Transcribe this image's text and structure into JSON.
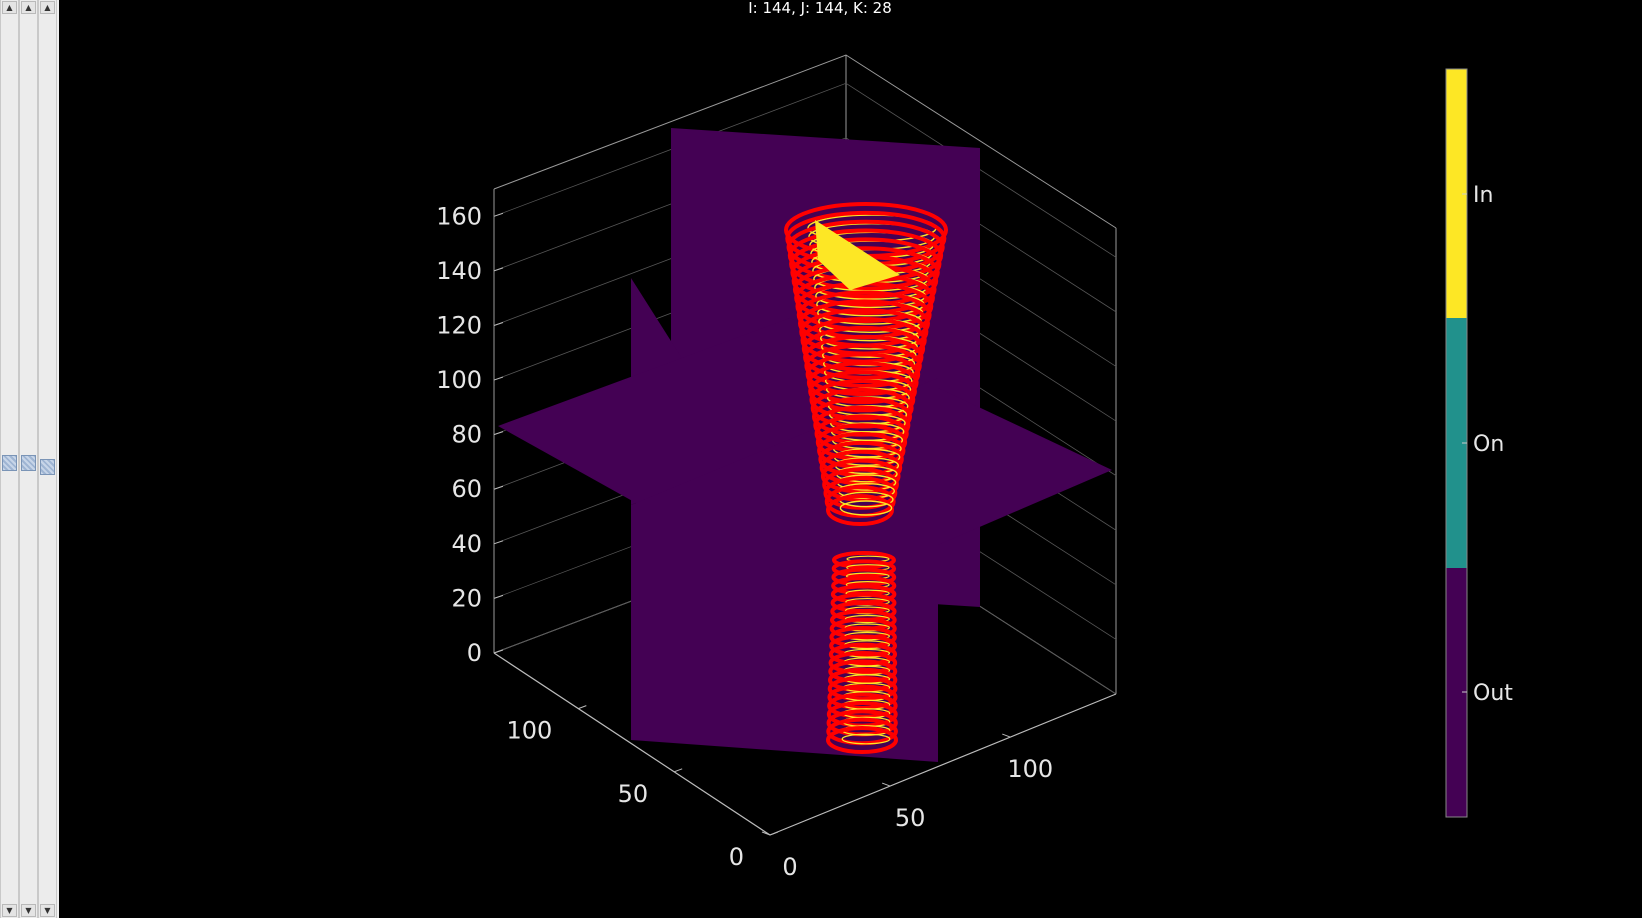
{
  "window": {
    "readout": "I: 144, J:  144, K: 28"
  },
  "sliders": [
    {
      "name": "slider-i",
      "value_fraction": 0.49
    },
    {
      "name": "slider-j",
      "value_fraction": 0.49
    },
    {
      "name": "slider-k",
      "value_fraction": 0.5
    },
    {
      "up_glyph": "▲",
      "down_glyph": "▼"
    }
  ],
  "chart_data": {
    "type": "3d-slices",
    "title": "",
    "xlabel": "",
    "ylabel": "",
    "zlabel": "",
    "x_ticks": [
      "0",
      "50",
      "100"
    ],
    "y_ticks": [
      "0",
      "50",
      "100"
    ],
    "z_ticks": [
      "0",
      "20",
      "40",
      "60",
      "80",
      "100",
      "120",
      "140",
      "160"
    ],
    "xlim": [
      0,
      144
    ],
    "ylim": [
      0,
      144
    ],
    "zlim": [
      0,
      170
    ],
    "grid": true,
    "slice_color": "#440154",
    "contour_color": "#ff0000",
    "surface_color": "#fde725",
    "colorbar": {
      "labels": [
        "In",
        "On",
        "Out"
      ],
      "colors": [
        "#fde725",
        "#21918c",
        "#440154"
      ]
    }
  },
  "icons": [
    "arrow-up-icon",
    "arrow-down-icon",
    "slider-thumb-icon"
  ]
}
